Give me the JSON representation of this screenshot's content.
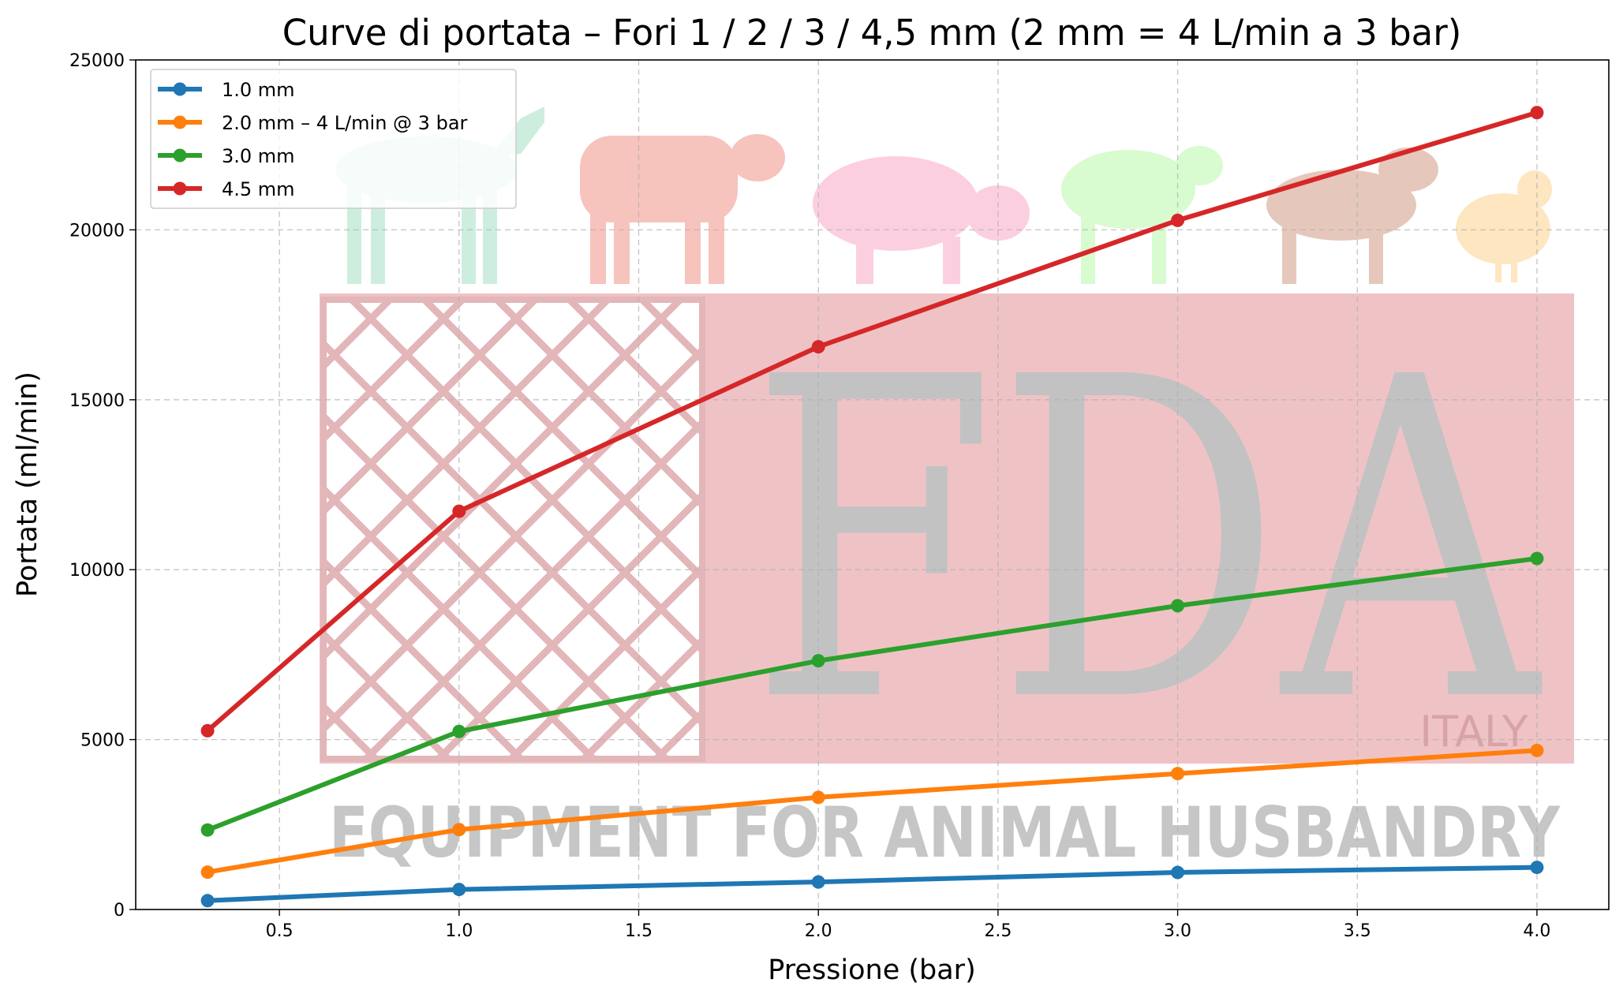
{
  "chart_data": {
    "type": "line",
    "title": "Curve di portata – Fori 1 / 2 / 3 / 4,5 mm (2 mm = 4 L/min a 3 bar)",
    "xlabel": "Pressione (bar)",
    "ylabel": "Portata (ml/min)",
    "xlim": [
      0.1,
      4.2
    ],
    "ylim": [
      0,
      25000
    ],
    "xticks": [
      "0.5",
      "1.0",
      "1.5",
      "2.0",
      "2.5",
      "3.0",
      "3.5",
      "4.0"
    ],
    "yticks": [
      "0",
      "5000",
      "10000",
      "15000",
      "20000",
      "25000"
    ],
    "grid": true,
    "legend_position": "top-left",
    "x": [
      0.3,
      1.0,
      2.0,
      3.0,
      4.0
    ],
    "series": [
      {
        "name": "1.0 mm",
        "color": "#1f77b4",
        "values": [
          260,
          590,
          810,
          1090,
          1240
        ]
      },
      {
        "name": "2.0 mm – 4 L/min @ 3 bar",
        "color": "#ff7f0e",
        "values": [
          1100,
          2350,
          3300,
          4000,
          4680
        ]
      },
      {
        "name": "3.0 mm",
        "color": "#2ca02c",
        "values": [
          2340,
          5240,
          7320,
          8940,
          10330
        ]
      },
      {
        "name": "4.5 mm",
        "color": "#d62728",
        "values": [
          5260,
          11720,
          16560,
          20280,
          23450
        ]
      }
    ]
  },
  "watermark": {
    "logo_text": "FDA",
    "logo_subtext": "ITALY",
    "band_text": "EQUIPMENT FOR ANIMAL HUSBANDRY",
    "animal_icons": [
      "horse-icon",
      "cow-icon",
      "pig-icon",
      "sheep-icon",
      "dog-icon",
      "hen-icon"
    ],
    "colors": {
      "panel": "#efc3c6",
      "lattice": "#e3b6b9",
      "letters": "#c2c2c2",
      "horse": "#cdeede",
      "cow": "#f7c3bd",
      "pig": "#fccfe0",
      "sheep": "#d8fbcf",
      "dog": "#e5c8bb",
      "hen": "#fde6c0"
    }
  }
}
